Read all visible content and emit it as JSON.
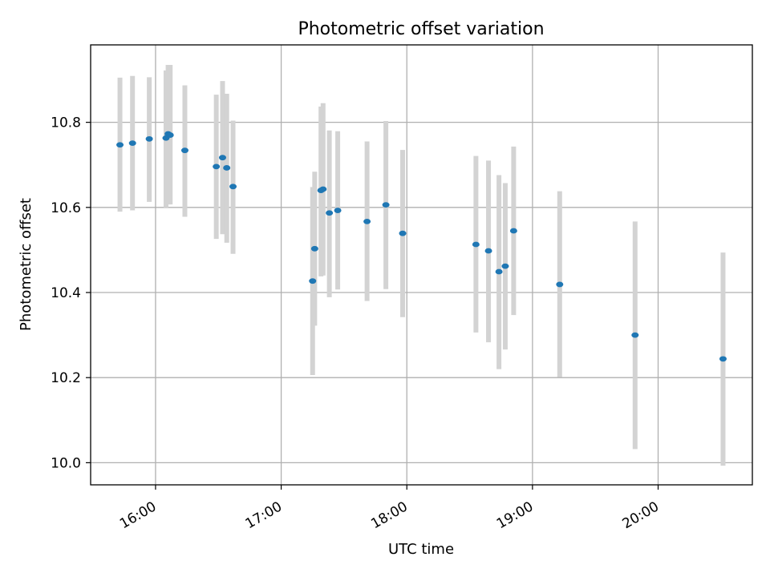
{
  "chart_data": {
    "type": "scatter",
    "title": "Photometric offset variation",
    "xlabel": "UTC time",
    "ylabel": "Photometric offset",
    "x_unit": "UTC time of day (HH:MM)",
    "xlim": [
      "15:29",
      "20:45"
    ],
    "ylim": [
      9.948,
      10.982
    ],
    "x_ticks": [
      "16:00",
      "17:00",
      "18:00",
      "19:00",
      "20:00"
    ],
    "y_ticks": [
      "10.0",
      "10.2",
      "10.4",
      "10.6",
      "10.8"
    ],
    "grid": true,
    "marker_color": "#1f77b4",
    "errorbar_color": "#d3d3d3",
    "series": [
      {
        "points": [
          {
            "x": "15:43",
            "y": 10.747,
            "ylow": 10.59,
            "yhigh": 10.905
          },
          {
            "x": "15:49",
            "y": 10.751,
            "ylow": 10.593,
            "yhigh": 10.909
          },
          {
            "x": "15:57",
            "y": 10.761,
            "ylow": 10.613,
            "yhigh": 10.906
          },
          {
            "x": "16:05",
            "y": 10.763,
            "ylow": 10.6,
            "yhigh": 10.922
          },
          {
            "x": "16:06",
            "y": 10.773,
            "ylow": 10.607,
            "yhigh": 10.935
          },
          {
            "x": "16:07",
            "y": 10.77,
            "ylow": 10.607,
            "yhigh": 10.935
          },
          {
            "x": "16:14",
            "y": 10.734,
            "ylow": 10.578,
            "yhigh": 10.887
          },
          {
            "x": "16:29",
            "y": 10.696,
            "ylow": 10.526,
            "yhigh": 10.865
          },
          {
            "x": "16:32",
            "y": 10.717,
            "ylow": 10.537,
            "yhigh": 10.897
          },
          {
            "x": "16:34",
            "y": 10.693,
            "ylow": 10.517,
            "yhigh": 10.867
          },
          {
            "x": "16:37",
            "y": 10.649,
            "ylow": 10.491,
            "yhigh": 10.804
          },
          {
            "x": "17:15",
            "y": 10.427,
            "ylow": 10.206,
            "yhigh": 10.648
          },
          {
            "x": "17:16",
            "y": 10.503,
            "ylow": 10.322,
            "yhigh": 10.684
          },
          {
            "x": "17:19",
            "y": 10.64,
            "ylow": 10.438,
            "yhigh": 10.837
          },
          {
            "x": "17:20",
            "y": 10.643,
            "ylow": 10.44,
            "yhigh": 10.845
          },
          {
            "x": "17:23",
            "y": 10.587,
            "ylow": 10.389,
            "yhigh": 10.781
          },
          {
            "x": "17:27",
            "y": 10.593,
            "ylow": 10.407,
            "yhigh": 10.779
          },
          {
            "x": "17:41",
            "y": 10.567,
            "ylow": 10.38,
            "yhigh": 10.755
          },
          {
            "x": "17:50",
            "y": 10.606,
            "ylow": 10.408,
            "yhigh": 10.803
          },
          {
            "x": "17:58",
            "y": 10.539,
            "ylow": 10.342,
            "yhigh": 10.735
          },
          {
            "x": "18:33",
            "y": 10.513,
            "ylow": 10.306,
            "yhigh": 10.721
          },
          {
            "x": "18:39",
            "y": 10.498,
            "ylow": 10.283,
            "yhigh": 10.71
          },
          {
            "x": "18:44",
            "y": 10.449,
            "ylow": 10.22,
            "yhigh": 10.676
          },
          {
            "x": "18:47",
            "y": 10.462,
            "ylow": 10.266,
            "yhigh": 10.657
          },
          {
            "x": "18:51",
            "y": 10.545,
            "ylow": 10.347,
            "yhigh": 10.743
          },
          {
            "x": "19:13",
            "y": 10.419,
            "ylow": 10.201,
            "yhigh": 10.638
          },
          {
            "x": "19:49",
            "y": 10.3,
            "ylow": 10.032,
            "yhigh": 10.567
          },
          {
            "x": "20:31",
            "y": 10.244,
            "ylow": 9.993,
            "yhigh": 10.494
          }
        ]
      }
    ]
  }
}
